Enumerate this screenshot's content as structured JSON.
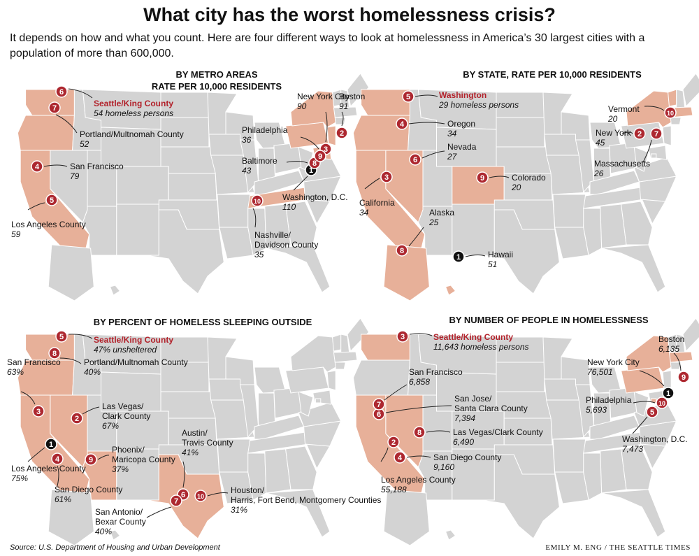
{
  "title": "What city has the worst homelessness crisis?",
  "subtitle": "It depends on how and what you count. Here are four different ways to look at homelessness in America’s 30 largest cities with a population of more than 600,000.",
  "colors": {
    "highlight_fill": "#e7b099",
    "map_fill": "#d3d3d3",
    "border": "#ffffff",
    "marker_red": "#ad2830",
    "marker_black": "#111111",
    "accent_text": "#b2222b"
  },
  "panels": [
    {
      "title_lines": [
        "BY METRO AREAS",
        "RATE PER 10,000 RESIDENTS"
      ],
      "highlighted": [
        "WA",
        "OR",
        "CA",
        "TN",
        "NY",
        "PA",
        "NJ",
        "MD",
        "DC"
      ],
      "markers": [
        {
          "rank": "1",
          "name": "Washington, D.C.",
          "value": "110",
          "black": true
        },
        {
          "rank": "2",
          "name": "Boston",
          "value": "91"
        },
        {
          "rank": "3",
          "name": "New York City",
          "value": "90"
        },
        {
          "rank": "4",
          "name": "San Francisco",
          "value": "79"
        },
        {
          "rank": "5",
          "name": "Los Angeles County",
          "value": "59"
        },
        {
          "rank": "6",
          "name": "Seattle/King County",
          "value": "54 homeless persons",
          "highlight": true
        },
        {
          "rank": "7",
          "name": "Portland/Multnomah County",
          "value": "52"
        },
        {
          "rank": "8",
          "name": "Baltimore",
          "value": "43"
        },
        {
          "rank": "9",
          "name": "Philadelphia",
          "value": "36"
        },
        {
          "rank": "10",
          "name": "Nashville/ Davidson County",
          "value": "35"
        }
      ]
    },
    {
      "title_lines": [
        "BY STATE, RATE PER 10,000 RESIDENTS"
      ],
      "highlighted": [
        "WA",
        "OR",
        "CA",
        "NV",
        "CO",
        "NY",
        "VT",
        "MA",
        "AK",
        "HI"
      ],
      "markers": [
        {
          "rank": "1",
          "name": "Hawaii",
          "value": "51",
          "black": true
        },
        {
          "rank": "2",
          "name": "New York",
          "value": "45"
        },
        {
          "rank": "3",
          "name": "California",
          "value": "34"
        },
        {
          "rank": "4",
          "name": "Oregon",
          "value": "34"
        },
        {
          "rank": "5",
          "name": "Washington",
          "value": "29 homeless persons",
          "highlight": true
        },
        {
          "rank": "6",
          "name": "Nevada",
          "value": "27"
        },
        {
          "rank": "7",
          "name": "Massachusetts",
          "value": "26"
        },
        {
          "rank": "8",
          "name": "Alaska",
          "value": "25"
        },
        {
          "rank": "9",
          "name": "Colorado",
          "value": "20"
        },
        {
          "rank": "10",
          "name": "Vermont",
          "value": "20"
        }
      ]
    },
    {
      "title_lines": [
        "BY PERCENT OF HOMELESS SLEEPING OUTSIDE"
      ],
      "highlighted": [
        "WA",
        "OR",
        "CA",
        "NV",
        "AZ",
        "TX"
      ],
      "markers": [
        {
          "rank": "1",
          "name": "Los Angeles County",
          "value": "75%",
          "black": true
        },
        {
          "rank": "2",
          "name": "Las Vegas/ Clark County",
          "value": "67%"
        },
        {
          "rank": "3",
          "name": "San Francisco",
          "value": "63%"
        },
        {
          "rank": "4",
          "name": "San Diego County",
          "value": "61%"
        },
        {
          "rank": "5",
          "name": "Seattle/King County",
          "value": "47% unsheltered",
          "highlight": true
        },
        {
          "rank": "6",
          "name": "Austin/ Travis County",
          "value": "41%"
        },
        {
          "rank": "7",
          "name": "San Antonio/ Bexar County",
          "value": "40%"
        },
        {
          "rank": "8",
          "name": "Portland/Multnomah County",
          "value": "40%"
        },
        {
          "rank": "9",
          "name": "Phoenix/ Maricopa County",
          "value": "37%"
        },
        {
          "rank": "10",
          "name": "Houston/ Harris, Fort Bend, Montgomery Counties",
          "value": "31%"
        }
      ]
    },
    {
      "title_lines": [
        "BY NUMBER OF PEOPLE IN HOMELESSNESS"
      ],
      "highlighted": [
        "WA",
        "CA",
        "NV",
        "NY",
        "PA",
        "MA",
        "DC"
      ],
      "markers": [
        {
          "rank": "1",
          "name": "New York City",
          "value": "76,501",
          "black": true
        },
        {
          "rank": "2",
          "name": "Los Angeles County",
          "value": "55,188"
        },
        {
          "rank": "3",
          "name": "Seattle/King County",
          "value": "11,643 homeless persons",
          "highlight": true
        },
        {
          "rank": "4",
          "name": "San Diego County",
          "value": "9,160"
        },
        {
          "rank": "5",
          "name": "Washington, D.C.",
          "value": "7,473"
        },
        {
          "rank": "6",
          "name": "San Jose/ Santa Clara County",
          "value": "7,394"
        },
        {
          "rank": "7",
          "name": "San Francisco",
          "value": "6,858"
        },
        {
          "rank": "8",
          "name": "Las Vegas/Clark County",
          "value": "6,490"
        },
        {
          "rank": "9",
          "name": "Boston",
          "value": "6,135"
        },
        {
          "rank": "10",
          "name": "Philadelphia",
          "value": "5,693"
        }
      ]
    }
  ],
  "source": "Source: U.S. Department of Housing and Urban Development",
  "credit": "EMILY M. ENG / THE SEATTLE TIMES"
}
